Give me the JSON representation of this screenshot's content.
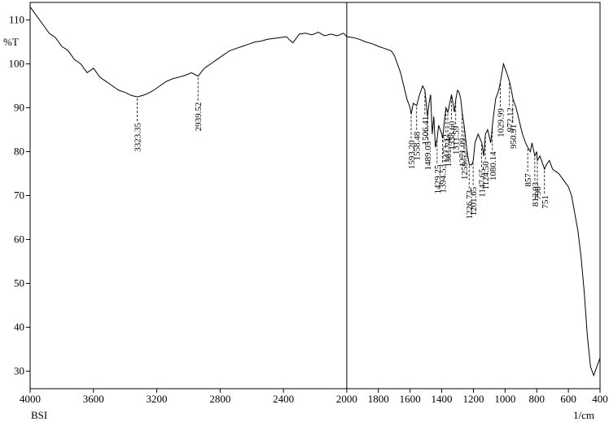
{
  "chart_data": {
    "type": "line",
    "title": "",
    "xlabel": "1/cm",
    "ylabel": "%T",
    "footer_left": "BSI",
    "xlim": [
      4000,
      400
    ],
    "ylim": [
      26,
      114
    ],
    "x_ticks": [
      "4000",
      "3600",
      "3200",
      "2800",
      "2400",
      "2000",
      "1800",
      "1600",
      "1400",
      "1200",
      "1000",
      "800",
      "600",
      "400"
    ],
    "x_tick_values": [
      4000,
      3600,
      3200,
      2800,
      2400,
      2000,
      1800,
      1600,
      1400,
      1200,
      1000,
      800,
      600,
      400
    ],
    "y_ticks": [
      "30",
      "40",
      "50",
      "60",
      "70",
      "80",
      "90",
      "100",
      "110"
    ],
    "y_tick_values": [
      30,
      40,
      50,
      60,
      70,
      80,
      90,
      100,
      110
    ],
    "grid": false,
    "vertical_marker_x": 2000,
    "series": [
      {
        "color": "#000000",
        "x": [
          4000,
          3960,
          3920,
          3880,
          3840,
          3800,
          3760,
          3720,
          3680,
          3640,
          3600,
          3560,
          3520,
          3480,
          3440,
          3400,
          3360,
          3323,
          3290,
          3260,
          3220,
          3180,
          3140,
          3100,
          3060,
          3020,
          2980,
          2939,
          2900,
          2860,
          2820,
          2780,
          2740,
          2700,
          2660,
          2620,
          2580,
          2540,
          2500,
          2460,
          2420,
          2380,
          2360,
          2340,
          2320,
          2300,
          2260,
          2220,
          2180,
          2140,
          2100,
          2060,
          2020,
          2000,
          1960,
          1920,
          1880,
          1840,
          1800,
          1760,
          1720,
          1700,
          1680,
          1660,
          1640,
          1620,
          1600,
          1593,
          1580,
          1558,
          1540,
          1520,
          1506,
          1490,
          1480,
          1470,
          1460,
          1450,
          1440,
          1429,
          1420,
          1400,
          1394,
          1380,
          1373,
          1361,
          1350,
          1338,
          1320,
          1311,
          1300,
          1290,
          1280,
          1271,
          1259,
          1240,
          1226,
          1210,
          1201,
          1190,
          1170,
          1147,
          1135,
          1124,
          1110,
          1090,
          1080,
          1060,
          1040,
          1029,
          1010,
          990,
          972,
          960,
          950,
          930,
          910,
          890,
          870,
          857,
          840,
          830,
          812,
          800,
          796,
          780,
          760,
          751,
          740,
          720,
          700,
          680,
          660,
          640,
          620,
          600,
          580,
          560,
          540,
          520,
          500,
          480,
          460,
          440,
          420,
          400
        ],
        "y": [
          113,
          111,
          109,
          107,
          106,
          104,
          103,
          101,
          100,
          98,
          99,
          97,
          96,
          95,
          94,
          93.5,
          92.8,
          92.5,
          92.8,
          93.2,
          94,
          95,
          96,
          96.6,
          97,
          97.4,
          98,
          97.2,
          99,
          100,
          101,
          102,
          103,
          103.5,
          104,
          104.5,
          105,
          105.2,
          105.6,
          105.8,
          106,
          106.2,
          105.4,
          104.8,
          105.8,
          106.8,
          107,
          106.6,
          107.2,
          106.4,
          106.8,
          106.4,
          107,
          106.2,
          106,
          105.6,
          105,
          104.6,
          104,
          103.5,
          103,
          102,
          100,
          98,
          95,
          92,
          90,
          88.5,
          91,
          90.5,
          93,
          95,
          94,
          88,
          91,
          93,
          84,
          88,
          81,
          83,
          86,
          84,
          83,
          88,
          90,
          89,
          91,
          93,
          89,
          92,
          94,
          93.5,
          92,
          89,
          86,
          80,
          77,
          77,
          78,
          82,
          84,
          82,
          79,
          84,
          85,
          82,
          86,
          92,
          94,
          96,
          100,
          98,
          96,
          94,
          92,
          90,
          87,
          84,
          82,
          81,
          80,
          82,
          79,
          80,
          78,
          79,
          77,
          76,
          77,
          78,
          76,
          75.5,
          75,
          74,
          73,
          72,
          70,
          66,
          62,
          56,
          48,
          38,
          31,
          29,
          31,
          33
        ]
      }
    ],
    "peaks": [
      {
        "label": "3323.35",
        "x": 3323.35
      },
      {
        "label": "2939.52",
        "x": 2939.52
      },
      {
        "label": "1593.20",
        "x": 1593.2
      },
      {
        "label": "1558.48",
        "x": 1558.48
      },
      {
        "label": "1506.41",
        "x": 1506.41
      },
      {
        "label": "1489.05",
        "x": 1489.05
      },
      {
        "label": "1429.25",
        "x": 1429.25
      },
      {
        "label": "1394.53",
        "x": 1394.53
      },
      {
        "label": "1373.32",
        "x": 1373.32
      },
      {
        "label": "1361.74",
        "x": 1361.74
      },
      {
        "label": "1338.60",
        "x": 1338.6
      },
      {
        "label": "1311.59",
        "x": 1311.59
      },
      {
        "label": "1271.09",
        "x": 1271.09
      },
      {
        "label": "1259.52",
        "x": 1259.52
      },
      {
        "label": "1226.73",
        "x": 1226.73
      },
      {
        "label": "1201.65",
        "x": 1201.65
      },
      {
        "label": "1147.65",
        "x": 1147.65
      },
      {
        "label": "1124.50",
        "x": 1124.5
      },
      {
        "label": "1080.14",
        "x": 1080.14
      },
      {
        "label": "1029.99",
        "x": 1029.99
      },
      {
        "label": "972.12",
        "x": 972.12
      },
      {
        "label": "950.91",
        "x": 950.91
      },
      {
        "label": "857",
        "x": 857
      },
      {
        "label": "812.03",
        "x": 812.03
      },
      {
        "label": "796",
        "x": 796
      },
      {
        "label": "751",
        "x": 751
      }
    ]
  }
}
